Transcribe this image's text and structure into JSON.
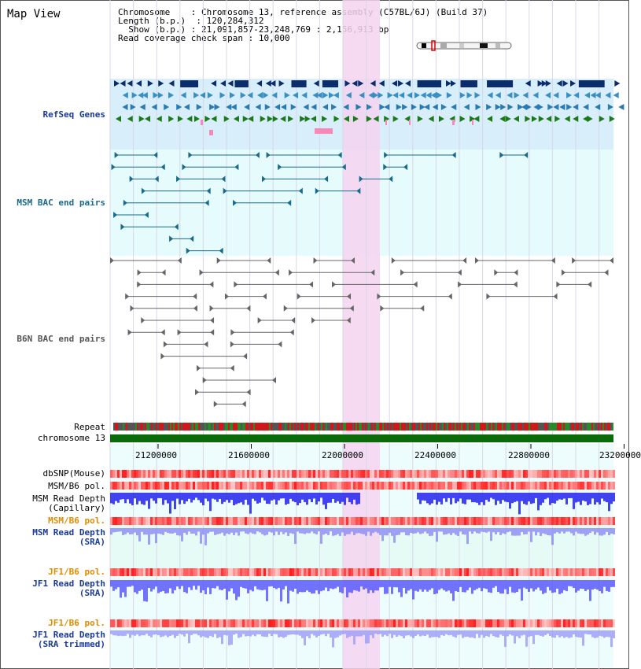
{
  "header": {
    "title": "Map View",
    "chromosome_key": "Chromosome",
    "chromosome_val": "Chromosome 13, reference assembly (C57BL/6J) (Build 37)",
    "length_key": "Length (b.p.)",
    "length_val": "120,284,312",
    "show_key": "Show (b.p.)",
    "show_val": "21,091,857-23,248,769 : 2,156,913 bp",
    "span_key": "Read coverage check span",
    "span_val": "10,000"
  },
  "tracks": {
    "refseq": "RefSeq Genes",
    "msm_bac": "MSM BAC end pairs",
    "b6n_bac": "B6N BAC end pairs",
    "repeat": "Repeat",
    "chromosome": "chromosome 13",
    "dbsnp": "dbSNP(Mouse)",
    "msm_b6_pol_1": "MSM/B6 pol.",
    "msm_depth_cap_1": "MSM Read Depth",
    "msm_depth_cap_2": "(Capillary)",
    "msm_b6_pol_2": "MSM/B6 pol.",
    "msm_depth_sra_1": "MSM Read Depth",
    "msm_depth_sra_2": "(SRA)",
    "jf1_b6_pol_1": "JF1/B6 pol.",
    "jf1_depth_sra_1": "JF1 Read Depth",
    "jf1_depth_sra_2": "(SRA)",
    "jf1_b6_pol_2": "JF1/B6 pol.",
    "jf1_depth_trim_1": "JF1 Read Depth",
    "jf1_depth_trim_2": "(SRA trimmed)"
  },
  "axis": {
    "ticks": [
      "21200000",
      "21600000",
      "22000000",
      "22400000",
      "22800000",
      "23200000"
    ]
  },
  "colors": {
    "refseq_bg": "#d8eefa",
    "track_bg": "#e6fbfb",
    "highlight": "#f5d3f0",
    "msm_label": "#1a3a9a",
    "msm_bac_label": "#1a6a8a",
    "jf1_label": "#e08c00",
    "chromosome_bar": "#0b6b0b",
    "depth_blue": "#3333ff"
  }
}
